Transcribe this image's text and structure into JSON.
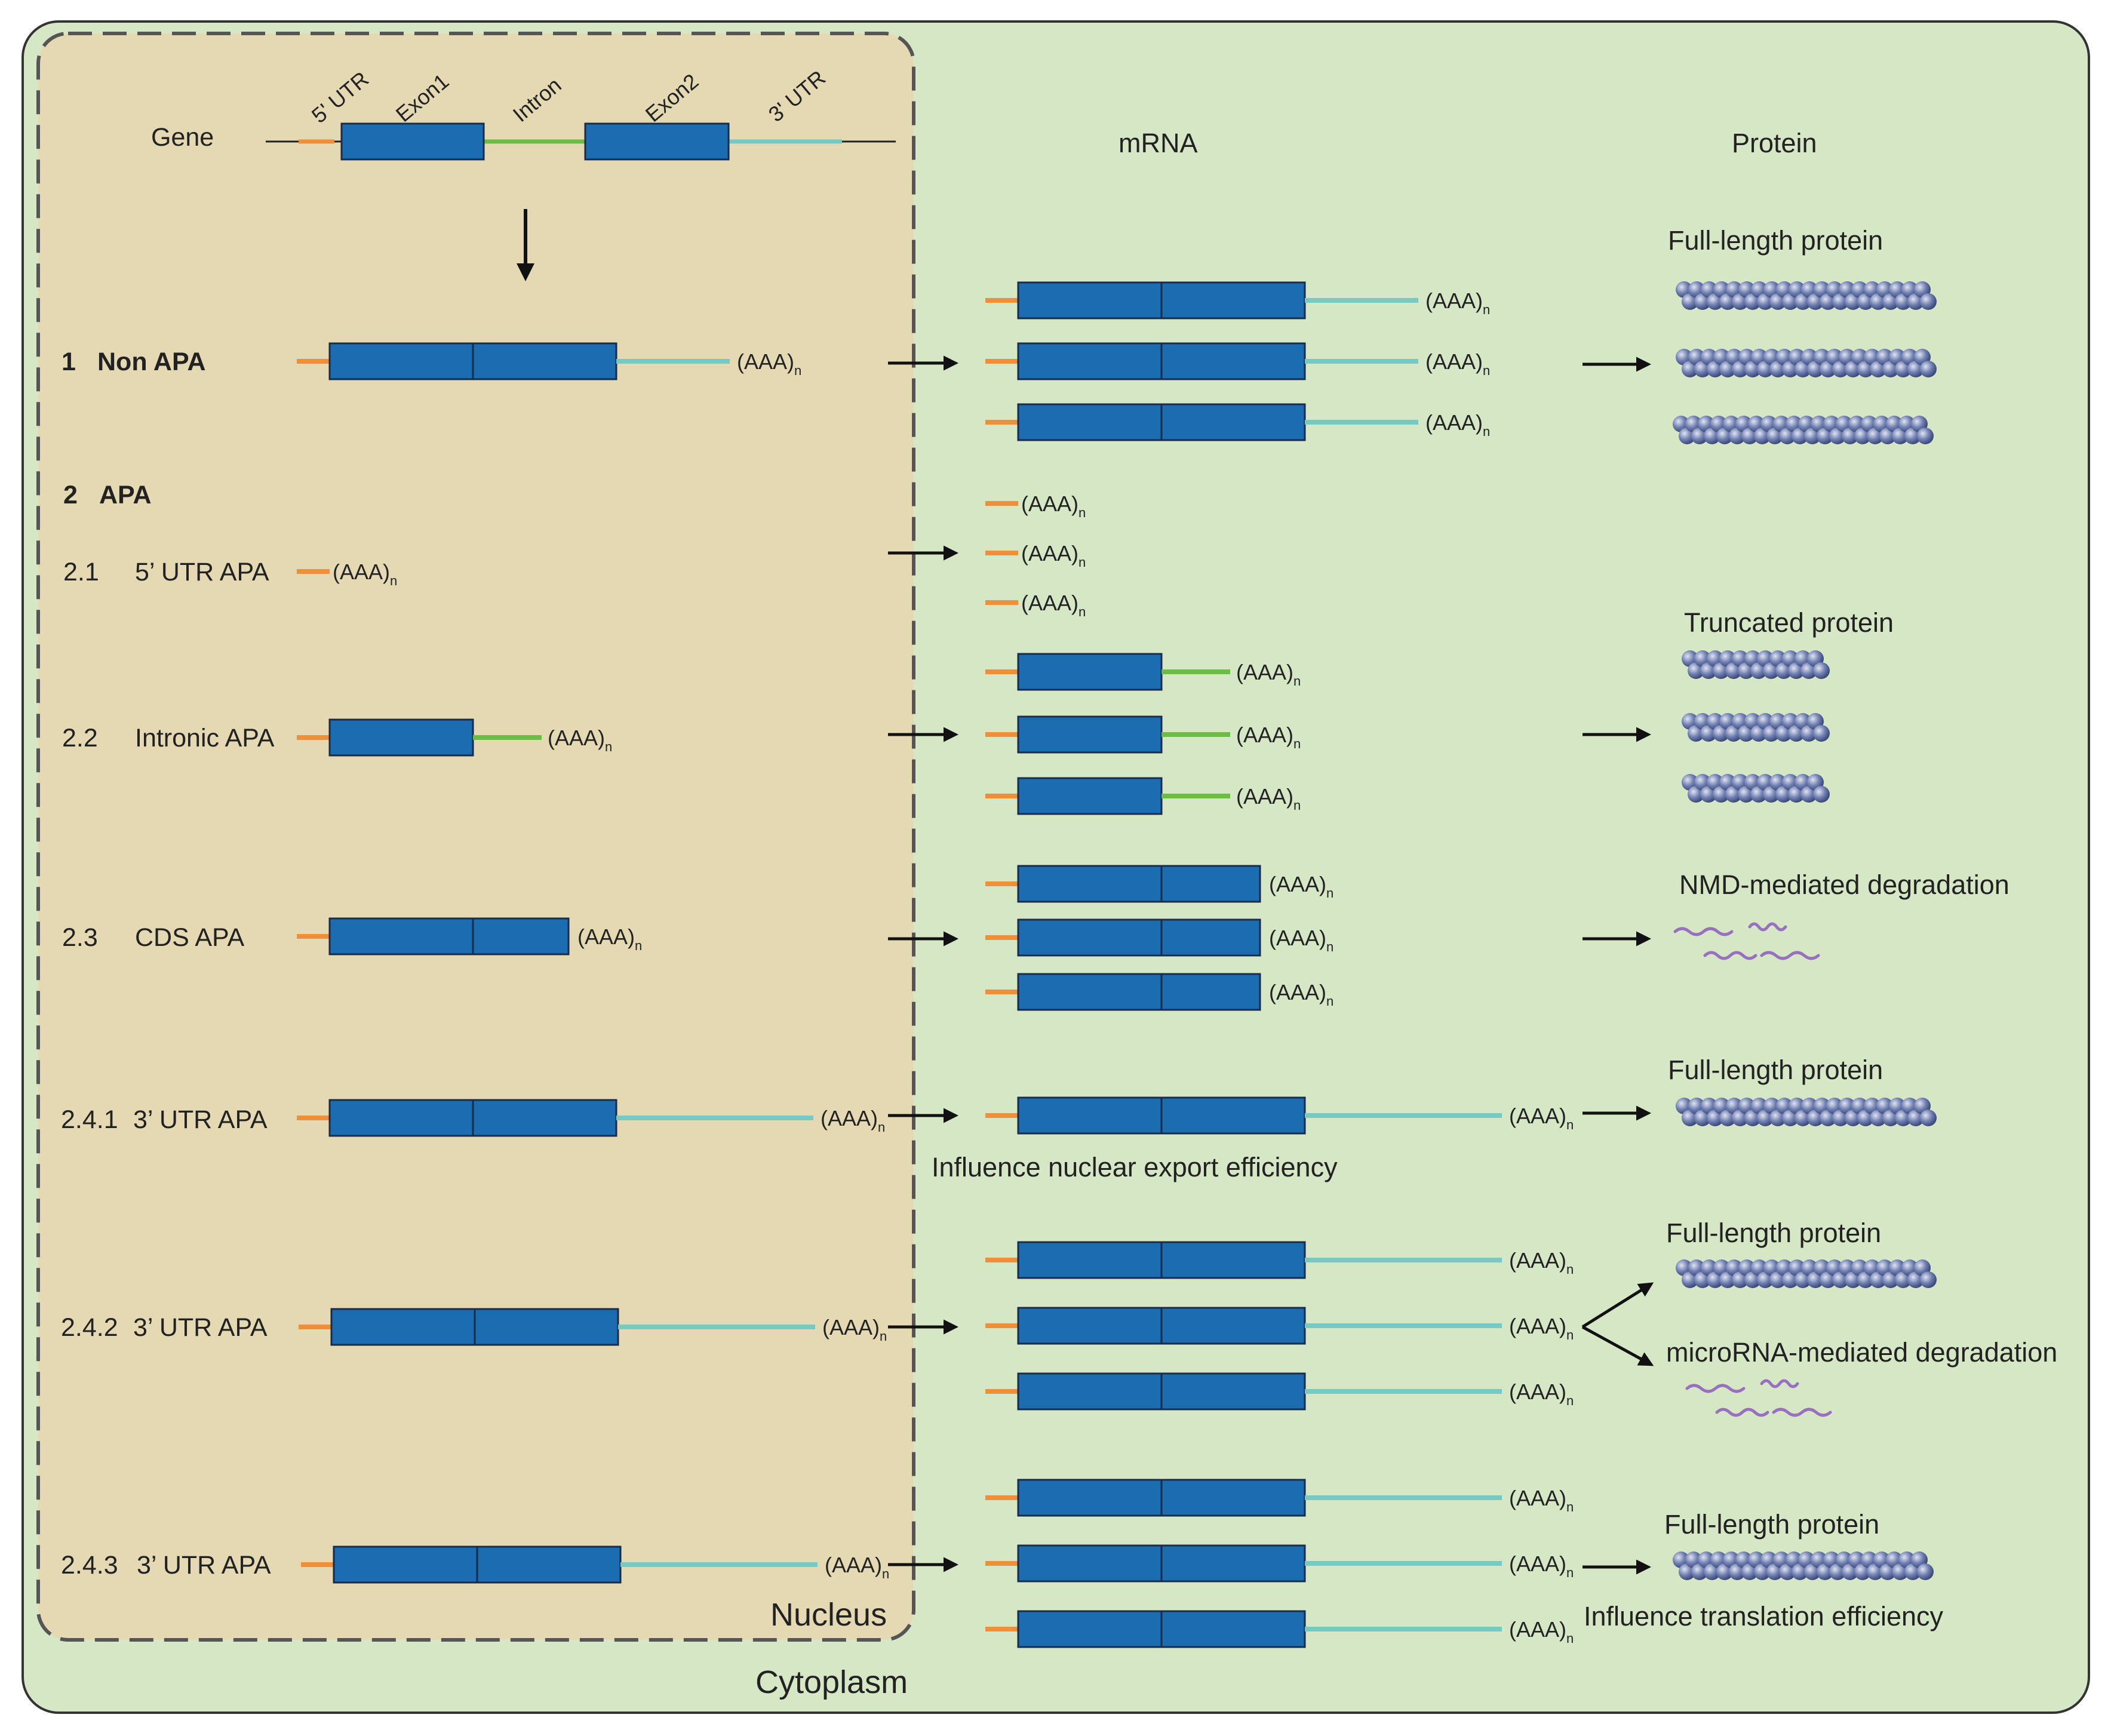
{
  "colors": {
    "cytoplasm": "#d6e7c6",
    "nucleus": "#e5d9b3",
    "exon": "#1b6cb1",
    "utr5": "#ef8f3a",
    "intron": "#6dbd45",
    "utr3": "#77c9c4",
    "protein": "#5f6f9e",
    "rna": "#9870bf",
    "border": "#333333"
  },
  "regions": {
    "nucleus": "Nucleus",
    "cytoplasm": "Cytoplasm"
  },
  "headers": {
    "mrna": "mRNA",
    "protein": "Protein"
  },
  "gene": {
    "label": "Gene",
    "annotations": [
      "5' UTR",
      "Exon1",
      "Intron",
      "Exon2",
      "3' UTR"
    ]
  },
  "tail": {
    "main": "(AAA)",
    "sub": "n"
  },
  "categories": [
    {
      "number": "1",
      "name": "Non APA"
    },
    {
      "number": "2",
      "name": "APA"
    },
    {
      "number": "2.1",
      "name": "5’ UTR APA"
    },
    {
      "number": "2.2",
      "name": "Intronic APA"
    },
    {
      "number": "2.3",
      "name": "CDS APA"
    },
    {
      "number": "2.4.1",
      "name": "3’ UTR APA"
    },
    {
      "number": "2.4.2",
      "name": "3’ UTR APA"
    },
    {
      "number": "2.4.3",
      "name": "3’ UTR APA"
    }
  ],
  "outcomes": [
    "Full-length protein",
    "Truncated protein",
    "NMD-mediated degradation",
    "Full-length protein",
    "Full-length protein",
    "microRNA-mediated degradation",
    "Full-length protein"
  ],
  "notes": [
    "Influence nuclear export efficiency",
    "Influence translation efficiency"
  ]
}
